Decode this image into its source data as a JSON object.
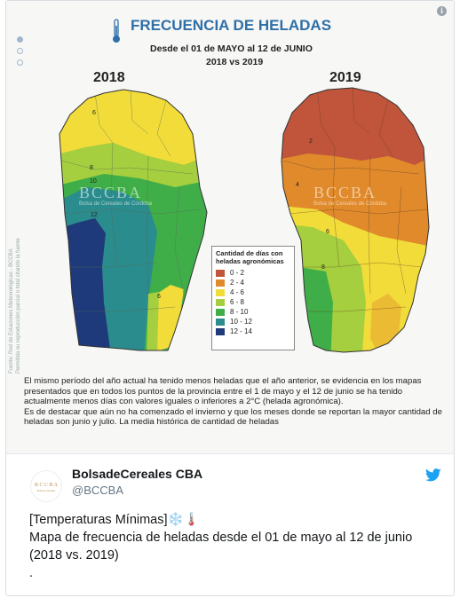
{
  "infographic": {
    "title": "FRECUENCIA DE HELADAS",
    "subtitle": "Desde el 01 de MAYO al 12 de JUNIO",
    "comparison": "2018 vs 2019",
    "year_left": "2018",
    "year_right": "2019",
    "watermark": "BCCBA",
    "watermark_sub": "Bolsa de Cereales de Córdoba",
    "source_vertical": "Fuente: Red de Estaciones Meteorológicas - BCCBA",
    "source_vertical2": "Permitida su reproducción parcial o total citando la fuente",
    "legend": {
      "title": "Cantidad de días con heladas agronómicas",
      "items": [
        {
          "label": "0 - 2",
          "color": "#c0553b"
        },
        {
          "label": "2 - 4",
          "color": "#e08a2b"
        },
        {
          "label": "4 - 6",
          "color": "#f2dc3a"
        },
        {
          "label": "6 - 8",
          "color": "#a5cf3e"
        },
        {
          "label": "8 - 10",
          "color": "#3fae48"
        },
        {
          "label": "10 - 12",
          "color": "#2a8c8c"
        },
        {
          "label": "12 - 14",
          "color": "#1f3a7a"
        }
      ]
    },
    "map_labels_2018": [
      "6",
      "8",
      "10",
      "12",
      "6"
    ],
    "map_labels_2019": [
      "2",
      "4",
      "6",
      "8"
    ],
    "paragraph1": "El mismo período del año actual ha tenido menos heladas que el año anterior, se evidencia en los mapas presentados que en todos los puntos de la provincia entre el 1 de mayo y el 12 de junio se ha tenido actualmente menos días con valores iguales o inferiores a 2°C (helada agronómica).",
    "paragraph2": "Es de destacar que aún no ha comenzado el invierno y que los meses donde se reportan la mayor cantidad de heladas son junio y julio. La media histórica de cantidad de heladas"
  },
  "tweet": {
    "name": "BolsadeCereales CBA",
    "handle": "@BCCBA",
    "line1": "[Temperaturas Mínimas]❄️🌡️",
    "line2": "Mapa de frecuencia de heladas desde el 01 de mayo al 12 de junio (2018 vs. 2019)",
    "line3": "."
  },
  "colors": {
    "twitter_blue": "#1da1f2",
    "title_blue": "#2f6fa8"
  }
}
